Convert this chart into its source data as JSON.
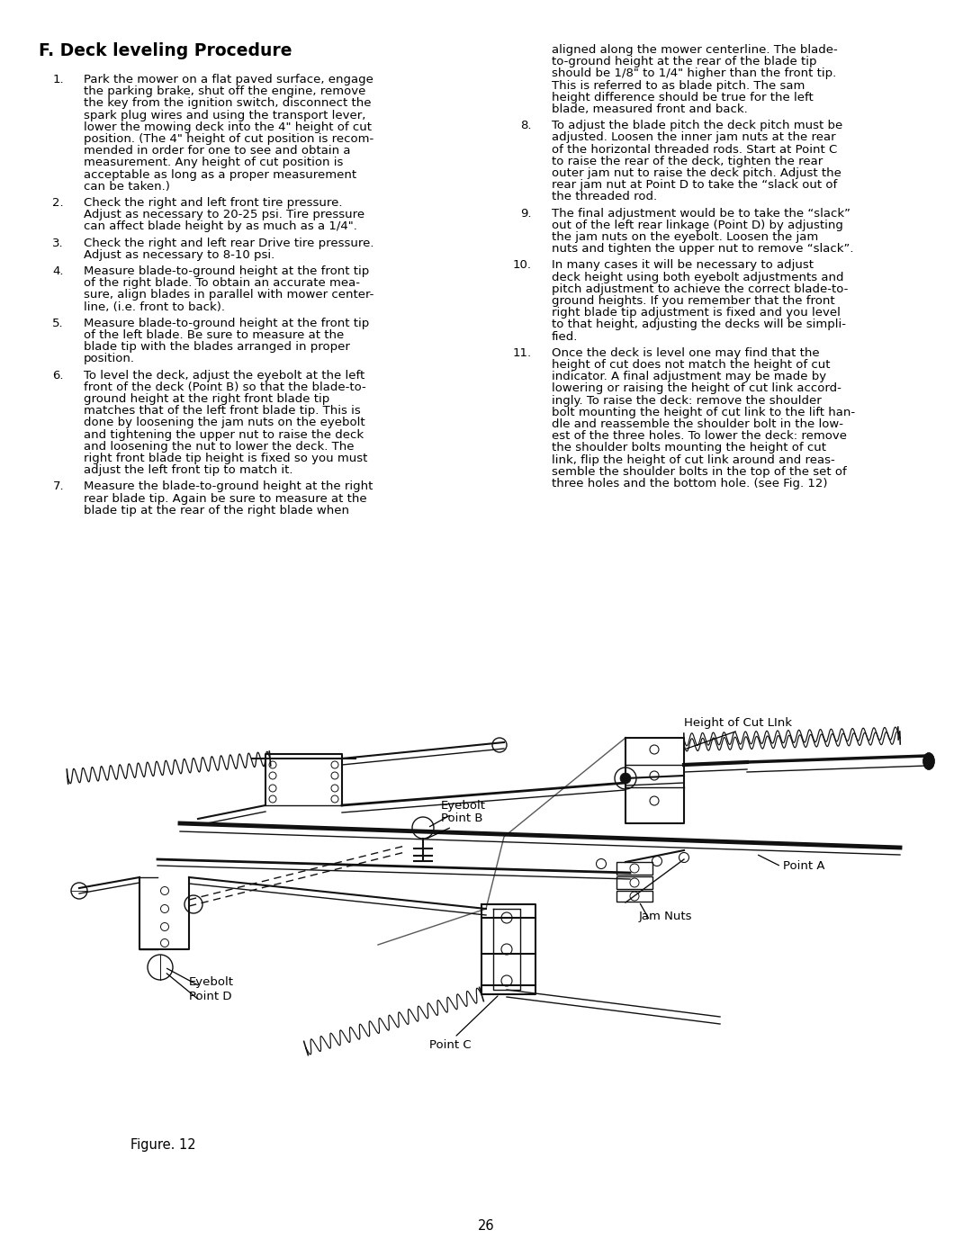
{
  "title": "F. Deck leveling Procedure",
  "background_color": "#ffffff",
  "text_color": "#000000",
  "page_number": "26",
  "left_items": [
    {
      "num": "1.",
      "lines": [
        "Park the mower on a flat paved surface, engage",
        "the parking brake, shut off the engine, remove",
        "the key from the ignition switch, disconnect the",
        "spark plug wires and using the transport lever,",
        "lower the mowing deck into the 4\" height of cut",
        "position. (The 4\" height of cut position is recom-",
        "mended in order for one to see and obtain a",
        "measurement. Any height of cut position is",
        "acceptable as long as a proper measurement",
        "can be taken.)"
      ]
    },
    {
      "num": "2.",
      "lines": [
        "Check the right and left front tire pressure.",
        "Adjust as necessary to 20-25 psi. Tire pressure",
        "can affect blade height by as much as a 1/4\"."
      ]
    },
    {
      "num": "3.",
      "lines": [
        "Check the right and left rear Drive tire pressure.",
        "Adjust as necessary to 8-10 psi."
      ]
    },
    {
      "num": "4.",
      "lines": [
        "Measure blade-to-ground height at the front tip",
        "of the right blade. To obtain an accurate mea-",
        "sure, align blades in parallel with mower center-",
        "line, (i.e. front to back)."
      ]
    },
    {
      "num": "5.",
      "lines": [
        "Measure blade-to-ground height at the front tip",
        "of the left blade. Be sure to measure at the",
        "blade tip with the blades arranged in proper",
        "position."
      ]
    },
    {
      "num": "6.",
      "lines": [
        "To level the deck, adjust the eyebolt at the left",
        "front of the deck (Point B) so that the blade-to-",
        "ground height at the right front blade tip",
        "matches that of the left front blade tip. This is",
        "done by loosening the jam nuts on the eyebolt",
        "and tightening the upper nut to raise the deck",
        "and loosening the nut to lower the deck. The",
        "right front blade tip height is fixed so you must",
        "adjust the left front tip to match it."
      ]
    },
    {
      "num": "7.",
      "lines": [
        "Measure the blade-to-ground height at the right",
        "rear blade tip. Again be sure to measure at the",
        "blade tip at the rear of the right blade when"
      ]
    }
  ],
  "right_items": [
    {
      "num": "",
      "lines": [
        "aligned along the mower centerline. The blade-",
        "to-ground height at the rear of the blade tip",
        "should be 1/8\" to 1/4\" higher than the front tip.",
        "This is referred to as blade pitch. The sam",
        "height difference should be true for the left",
        "blade, measured front and back."
      ]
    },
    {
      "num": "8.",
      "lines": [
        "To adjust the blade pitch the deck pitch must be",
        "adjusted. Loosen the inner jam nuts at the rear",
        "of the horizontal threaded rods. Start at Point C",
        "to raise the rear of the deck, tighten the rear",
        "outer jam nut to raise the deck pitch. Adjust the",
        "rear jam nut at Point D to take the “slack out of",
        "the threaded rod."
      ]
    },
    {
      "num": "9.",
      "lines": [
        "The final adjustment would be to take the “slack”",
        "out of the left rear linkage (Point D) by adjusting",
        "the jam nuts on the eyebolt. Loosen the jam",
        "nuts and tighten the upper nut to remove “slack”."
      ]
    },
    {
      "num": "10.",
      "lines": [
        "In many cases it will be necessary to adjust",
        "deck height using both eyebolt adjustments and",
        "pitch adjustment to achieve the correct blade-to-",
        "ground heights. If you remember that the front",
        "right blade tip adjustment is fixed and you level",
        "to that height, adjusting the decks will be simpli-",
        "fied."
      ]
    },
    {
      "num": "11.",
      "lines": [
        "Once the deck is level one may find that the",
        "height of cut does not match the height of cut",
        "indicator. A final adjustment may be made by",
        "lowering or raising the height of cut link accord-",
        "ingly. To raise the deck: remove the shoulder",
        "bolt mounting the height of cut link to the lift han-",
        "dle and reassemble the shoulder bolt in the low-",
        "est of the three holes. To lower the deck: remove",
        "the shoulder bolts mounting the height of cut",
        "link, flip the height of cut link around and reas-",
        "semble the shoulder bolts in the top of the set of",
        "three holes and the bottom hole. (see Fig. 12)"
      ]
    }
  ],
  "figure_label": "Figure. 12"
}
